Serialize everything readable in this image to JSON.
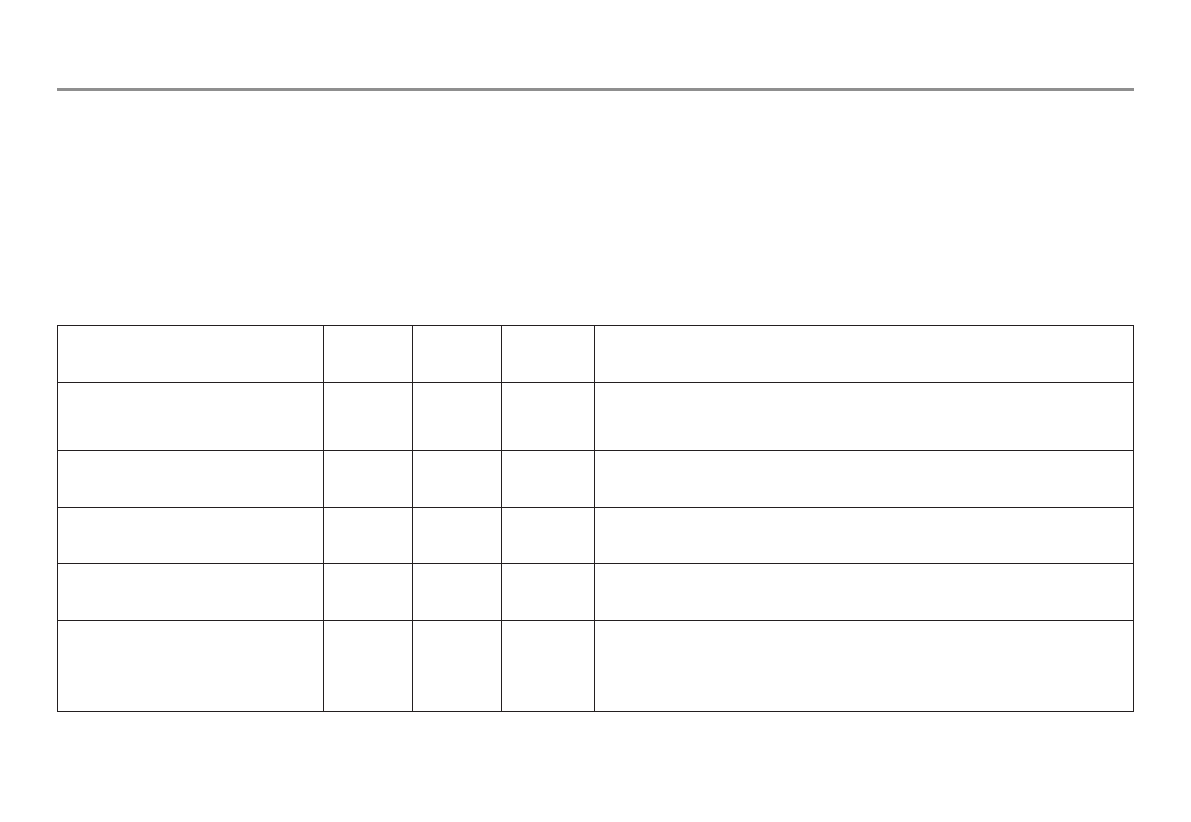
{
  "table": {
    "rows": [
      [
        "",
        "",
        "",
        "",
        ""
      ],
      [
        "",
        "",
        "",
        "",
        ""
      ],
      [
        "",
        "",
        "",
        "",
        ""
      ],
      [
        "",
        "",
        "",
        "",
        ""
      ],
      [
        "",
        "",
        "",
        "",
        ""
      ],
      [
        "",
        "",
        "",
        "",
        ""
      ]
    ]
  },
  "colors": {
    "rule": "#8f8f8f",
    "border": "#231f20"
  }
}
